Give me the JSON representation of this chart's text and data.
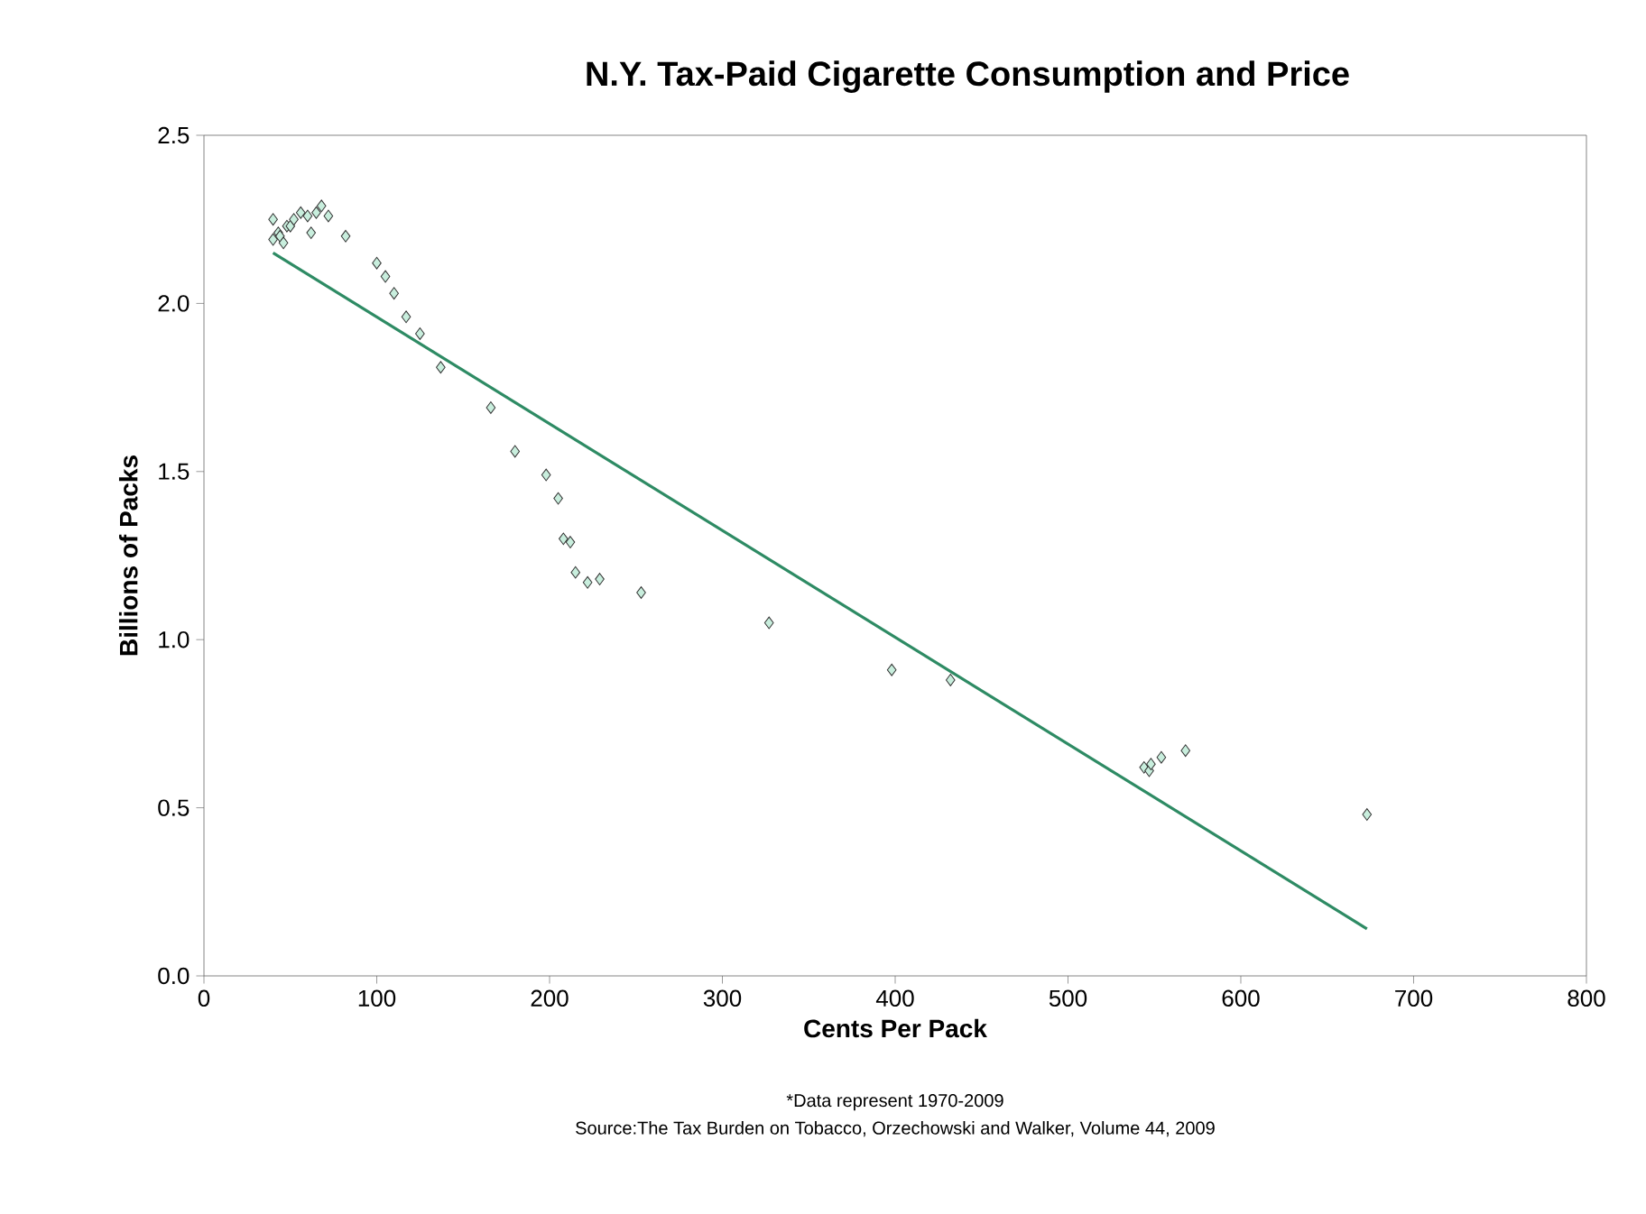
{
  "chart_data": {
    "type": "scatter",
    "title": "N.Y. Tax-Paid Cigarette Consumption and Price",
    "xlabel": "Cents Per Pack",
    "ylabel": "Billions of Packs",
    "annotations": [
      "*Data represent 1970-2009",
      "Source:The Tax Burden on Tobacco, Orzechowski and Walker, Volume 44, 2009"
    ],
    "xlim": [
      0,
      800
    ],
    "xticks": [
      0,
      100,
      200,
      300,
      400,
      500,
      600,
      700,
      800
    ],
    "ylim": [
      0,
      2.5
    ],
    "yticks": [
      {
        "value": 0,
        "label": "0.0"
      },
      {
        "value": 0.5,
        "label": "0.5"
      },
      {
        "value": 1,
        "label": "1.0"
      },
      {
        "value": 1.5,
        "label": "1.5"
      },
      {
        "value": 2,
        "label": "2.0"
      },
      {
        "value": 2.5,
        "label": "2.5"
      }
    ],
    "grid": false,
    "series": [
      {
        "type": "scatter",
        "marker": "diamond",
        "color": "#c8eedd",
        "x": [
          40,
          40,
          43,
          44,
          46,
          48,
          50,
          52,
          56,
          60,
          62,
          65,
          68,
          72,
          82,
          100,
          105,
          110,
          117,
          125,
          137,
          166,
          180,
          198,
          205,
          208,
          212,
          215,
          222,
          229,
          253,
          327,
          398,
          432,
          544,
          547,
          548,
          554,
          568,
          673
        ],
        "values": [
          2.25,
          2.19,
          2.21,
          2.2,
          2.18,
          2.23,
          2.23,
          2.25,
          2.27,
          2.26,
          2.21,
          2.27,
          2.29,
          2.26,
          2.2,
          2.12,
          2.08,
          2.03,
          1.96,
          1.91,
          1.81,
          1.69,
          1.56,
          1.49,
          1.42,
          1.3,
          1.29,
          1.2,
          1.17,
          1.18,
          1.14,
          1.05,
          0.91,
          0.88,
          0.62,
          0.61,
          0.63,
          0.65,
          0.67,
          0.48
        ]
      },
      {
        "type": "line",
        "marker": "none",
        "line_style": "solid",
        "color": "#2e8b64",
        "x": [
          40,
          673
        ],
        "values": [
          2.15,
          0.14
        ]
      }
    ]
  }
}
